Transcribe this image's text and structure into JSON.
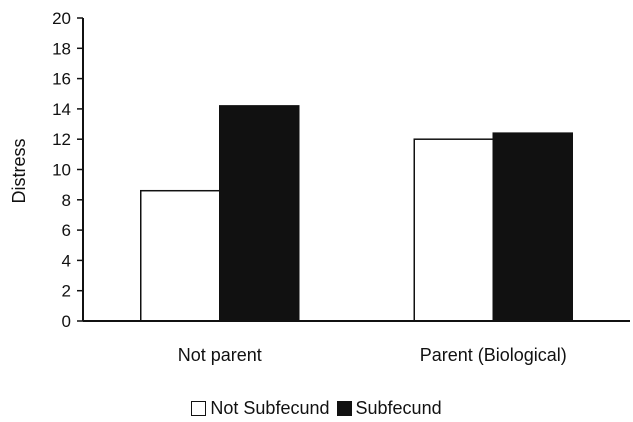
{
  "chart_data": {
    "type": "bar",
    "title": "",
    "xlabel": "",
    "ylabel": "Distress",
    "ylim": [
      0,
      20
    ],
    "yticks": [
      0,
      2,
      4,
      6,
      8,
      10,
      12,
      14,
      16,
      18,
      20
    ],
    "categories": [
      "Not parent",
      "Parent (Biological)"
    ],
    "series": [
      {
        "name": "Not Subfecund",
        "values": [
          8.6,
          12.0
        ],
        "color": "#ffffff"
      },
      {
        "name": "Subfecund",
        "values": [
          14.2,
          12.4
        ],
        "color": "#111111"
      }
    ],
    "grid": false,
    "legend_position": "bottom"
  }
}
